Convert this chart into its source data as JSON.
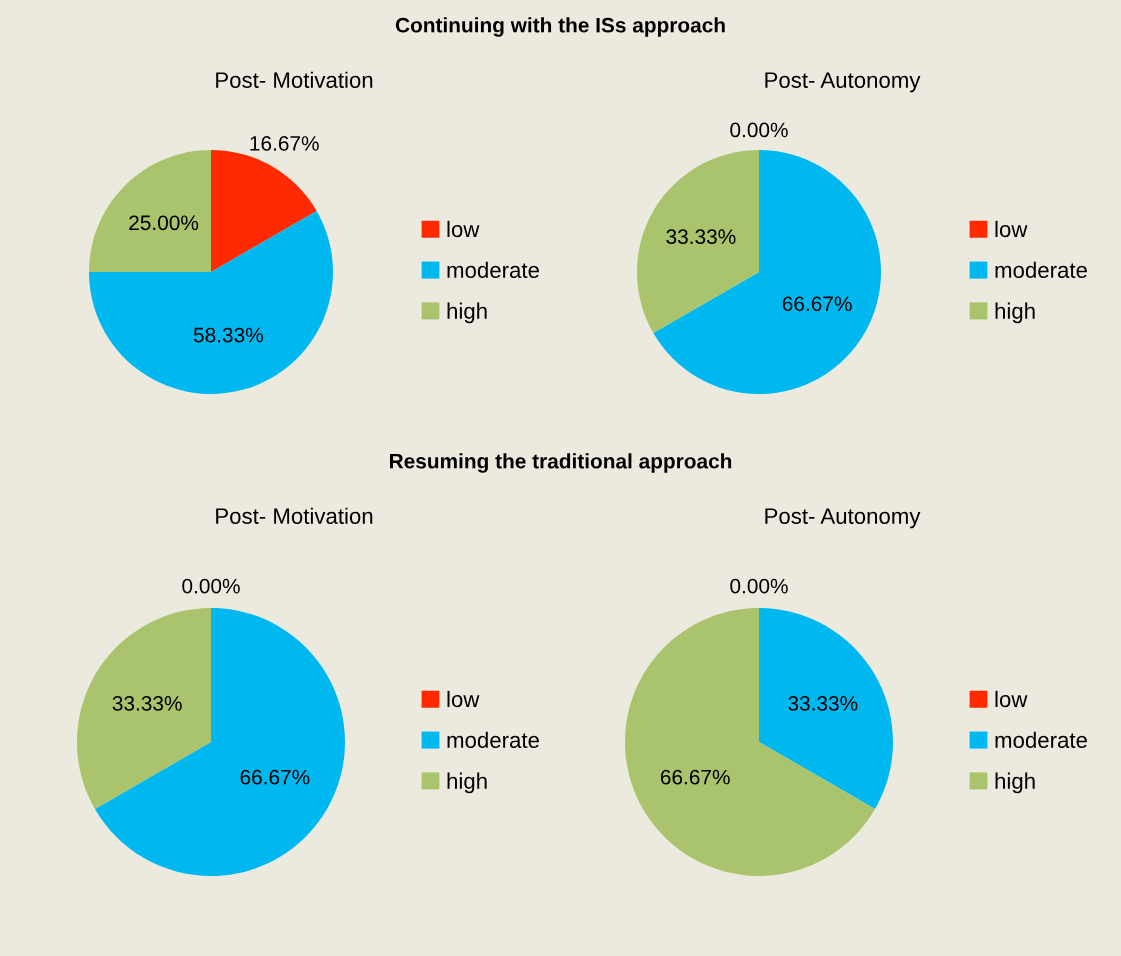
{
  "chart_data": [
    {
      "type": "pie",
      "title": "Post- Motivation",
      "annotations": [
        "Continuing with the ISs approach"
      ],
      "categories": [
        "low",
        "moderate",
        "high"
      ],
      "values": [
        16.67,
        58.33,
        25.0
      ],
      "colors": [
        "#ff2a00",
        "#00b8f0",
        "#a9c46c"
      ],
      "value_labels": [
        "16.67%",
        "58.33%",
        "25.00%"
      ],
      "legend": "right"
    },
    {
      "type": "pie",
      "title": "Post- Autonomy",
      "categories": [
        "low",
        "moderate",
        "high"
      ],
      "values": [
        0,
        66.67,
        33.33
      ],
      "colors": [
        "#ff2a00",
        "#00b8f0",
        "#a9c46c"
      ],
      "value_labels": [
        "0.00%",
        "66.67%",
        "33.33%"
      ],
      "legend": "right"
    },
    {
      "type": "pie",
      "title": "Post- Motivation",
      "annotations": [
        "Resuming the traditional approach"
      ],
      "categories": [
        "low",
        "moderate",
        "high"
      ],
      "values": [
        0,
        66.67,
        33.33
      ],
      "colors": [
        "#ff2a00",
        "#00b8f0",
        "#a9c46c"
      ],
      "value_labels": [
        "0.00%",
        "66.67%",
        "33.33%"
      ],
      "legend": "right"
    },
    {
      "type": "pie",
      "title": "Post- Autonomy",
      "categories": [
        "low",
        "moderate",
        "high"
      ],
      "values": [
        0,
        33.33,
        66.67
      ],
      "colors": [
        "#ff2a00",
        "#00b8f0",
        "#a9c46c"
      ],
      "value_labels": [
        "0.00%",
        "33.33%",
        "66.67%"
      ],
      "legend": "right"
    }
  ]
}
